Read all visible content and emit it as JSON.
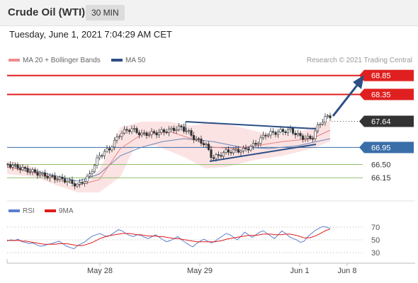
{
  "header": {
    "instrument": "Crude Oil (WTI)",
    "timeframe": "30 MIN"
  },
  "timestamp": "Tuesday, June 1, 2021 7:04:29 AM CET",
  "credit": "Research © 2021 Trading Central",
  "legend": {
    "price": [
      {
        "label": "MA 20 + Bollinger Bands",
        "color": "#f08c8c"
      },
      {
        "label": "MA 50",
        "color": "#2d4f86"
      }
    ],
    "rsi": [
      {
        "label": "RSI",
        "color": "#5b7fcf"
      },
      {
        "label": "9MA",
        "color": "#e31a1a"
      }
    ]
  },
  "chart_data": [
    {
      "type": "candlestick",
      "x_ticks": [
        "May 28",
        "May 29",
        "Jun 1",
        "Jun 8"
      ],
      "ylim": [
        65.65,
        69.05
      ],
      "levels": [
        {
          "value": 68.85,
          "label": "68.85",
          "style": "resistance",
          "color": "#e02020"
        },
        {
          "value": 68.35,
          "label": "68.35",
          "style": "resistance",
          "color": "#e02020"
        },
        {
          "value": 67.64,
          "label": "67.64",
          "style": "last",
          "color": "#333333"
        },
        {
          "value": 66.95,
          "label": "66.95",
          "style": "pivot",
          "color": "#3a6ea8"
        },
        {
          "value": 66.5,
          "label": "66.50",
          "style": "support",
          "color": "#5a8a3a"
        },
        {
          "value": 66.15,
          "label": "66.15",
          "style": "support",
          "color": "#5a8a3a"
        }
      ],
      "last_price": 67.64
    },
    {
      "type": "line",
      "name": "RSI",
      "ylim": [
        20,
        80
      ],
      "y_ticks": [
        70,
        50,
        30
      ],
      "series": [
        {
          "name": "RSI",
          "values": [
            48,
            50,
            49,
            51,
            47,
            46,
            44,
            45,
            42,
            40,
            41,
            43,
            44,
            46,
            48,
            44,
            40,
            38,
            36,
            41,
            44,
            47,
            52,
            56,
            58,
            60,
            57,
            55,
            58,
            62,
            66,
            64,
            60,
            57,
            55,
            58,
            57,
            54,
            52,
            55,
            58,
            54,
            50,
            47,
            49,
            52,
            55,
            50,
            46,
            42,
            39,
            44,
            48,
            51,
            48,
            45,
            48,
            52,
            56,
            60,
            58,
            54,
            50,
            56,
            62,
            58,
            54,
            58,
            62,
            64,
            60,
            56,
            52,
            58,
            64,
            60,
            55,
            52,
            50,
            46,
            48,
            55,
            60,
            65,
            68,
            71,
            70,
            68
          ]
        },
        {
          "name": "9MA",
          "values": [
            49,
            49,
            49,
            49,
            48,
            48,
            47,
            46,
            45,
            44,
            43,
            43,
            43,
            43,
            44,
            44,
            44,
            43,
            42,
            41,
            41,
            42,
            44,
            46,
            49,
            52,
            54,
            56,
            57,
            58,
            59,
            60,
            60,
            60,
            59,
            58,
            58,
            57,
            56,
            56,
            56,
            55,
            55,
            54,
            53,
            52,
            52,
            51,
            50,
            49,
            48,
            47,
            47,
            47,
            47,
            47,
            47,
            48,
            49,
            51,
            52,
            53,
            54,
            55,
            56,
            57,
            57,
            57,
            58,
            59,
            59,
            59,
            58,
            58,
            58,
            59,
            59,
            58,
            57,
            55,
            53,
            53,
            54,
            56,
            59,
            62,
            65,
            67
          ]
        }
      ]
    }
  ]
}
